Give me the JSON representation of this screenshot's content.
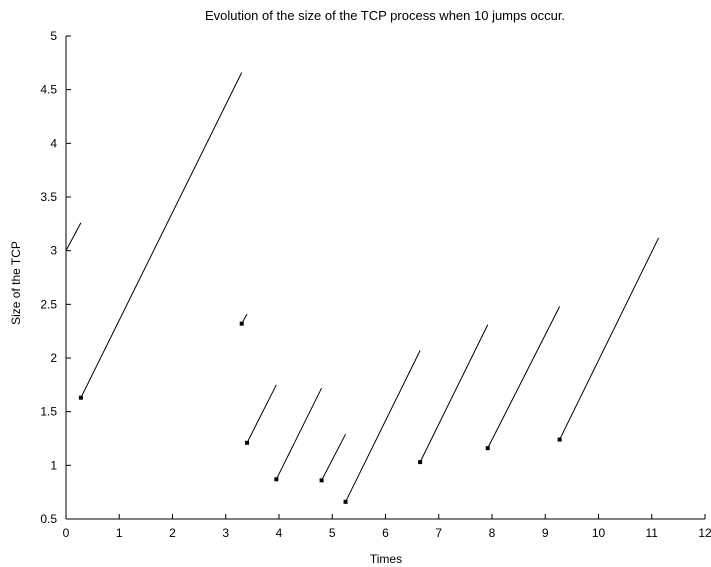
{
  "chart_data": {
    "type": "line",
    "title": "Evolution of the size of the TCP process when 10 jumps occur.",
    "xlabel": "Times",
    "ylabel": "Size of the TCP",
    "xlim": [
      0,
      12
    ],
    "ylim": [
      0.5,
      5
    ],
    "xticks": [
      0,
      1,
      2,
      3,
      4,
      5,
      6,
      7,
      8,
      9,
      10,
      11,
      12
    ],
    "yticks": [
      0.5,
      1,
      1.5,
      2,
      2.5,
      3,
      3.5,
      4,
      4.5,
      5
    ],
    "grid": false,
    "series": [
      {
        "x": [
          0,
          0.28
        ],
        "y": [
          3.0,
          3.26
        ]
      },
      {
        "x": [
          0.28,
          3.3
        ],
        "y": [
          1.63,
          4.66
        ]
      },
      {
        "x": [
          3.3,
          3.4
        ],
        "y": [
          2.32,
          2.41
        ]
      },
      {
        "x": [
          3.4,
          3.95
        ],
        "y": [
          1.21,
          1.75
        ]
      },
      {
        "x": [
          3.95,
          4.8
        ],
        "y": [
          0.87,
          1.72
        ]
      },
      {
        "x": [
          4.8,
          5.25
        ],
        "y": [
          0.86,
          1.29
        ]
      },
      {
        "x": [
          5.25,
          6.65
        ],
        "y": [
          0.66,
          2.07
        ]
      },
      {
        "x": [
          6.65,
          7.92
        ],
        "y": [
          1.03,
          2.31
        ]
      },
      {
        "x": [
          7.92,
          9.27
        ],
        "y": [
          1.16,
          2.48
        ]
      },
      {
        "x": [
          9.27,
          11.13
        ],
        "y": [
          1.24,
          3.12
        ]
      }
    ],
    "markers": [
      {
        "x": 0.28,
        "y": 1.63
      },
      {
        "x": 3.3,
        "y": 2.32
      },
      {
        "x": 3.4,
        "y": 1.21
      },
      {
        "x": 3.95,
        "y": 0.87
      },
      {
        "x": 4.8,
        "y": 0.86
      },
      {
        "x": 5.25,
        "y": 0.66
      },
      {
        "x": 6.65,
        "y": 1.03
      },
      {
        "x": 7.92,
        "y": 1.16
      },
      {
        "x": 9.27,
        "y": 1.24
      }
    ]
  }
}
